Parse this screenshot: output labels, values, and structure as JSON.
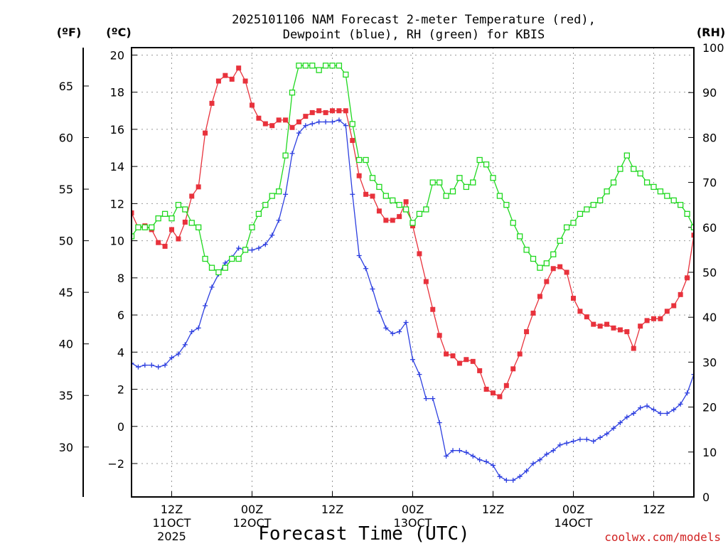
{
  "chart_data": {
    "type": "line",
    "title_line1": "2025101106 NAM Forecast 2-meter Temperature (red),",
    "title_line2": "Dewpoint (blue), RH (green) for KBIS",
    "units": {
      "f": "(ºF)",
      "c": "(ºC)",
      "rh": "(RH)"
    },
    "xlabel": "Forecast Time (UTC)",
    "credit": "coolwx.com/models",
    "x_range_hours": [
      0,
      84
    ],
    "x_ticks": [
      {
        "hour": 6,
        "lines": [
          "12Z",
          "11OCT",
          "2025"
        ]
      },
      {
        "hour": 18,
        "lines": [
          "00Z",
          "12OCT"
        ]
      },
      {
        "hour": 30,
        "lines": [
          "12Z"
        ]
      },
      {
        "hour": 42,
        "lines": [
          "00Z",
          "13OCT"
        ]
      },
      {
        "hour": 54,
        "lines": [
          "12Z"
        ]
      },
      {
        "hour": 66,
        "lines": [
          "00Z",
          "14OCT"
        ]
      },
      {
        "hour": 78,
        "lines": [
          "12Z"
        ]
      }
    ],
    "y_celsius": {
      "min": -3.8,
      "max": 20.4,
      "ticks": [
        -2,
        0,
        2,
        4,
        6,
        8,
        10,
        12,
        14,
        16,
        18,
        20
      ]
    },
    "y_fahrenheit_ticks": [
      30,
      35,
      40,
      45,
      50,
      55,
      60,
      65
    ],
    "y_rh": {
      "min": 0,
      "max": 100,
      "ticks": [
        0,
        10,
        20,
        30,
        40,
        50,
        60,
        70,
        80,
        90,
        100
      ]
    },
    "grid": true,
    "series": [
      {
        "name": "Temperature (red)",
        "axis": "celsius",
        "color": "#e8323c",
        "marker": "filled-square",
        "x": [
          0,
          1,
          2,
          3,
          4,
          5,
          6,
          7,
          8,
          9,
          10,
          11,
          12,
          13,
          14,
          15,
          16,
          17,
          18,
          19,
          20,
          21,
          22,
          23,
          24,
          25,
          26,
          27,
          28,
          29,
          30,
          31,
          32,
          33,
          34,
          35,
          36,
          37,
          38,
          39,
          40,
          41,
          42,
          43,
          44,
          45,
          46,
          47,
          48,
          49,
          50,
          51,
          52,
          53,
          54,
          55,
          56,
          57,
          58,
          59,
          60,
          61,
          62,
          63,
          64,
          65,
          66,
          67,
          68,
          69,
          70,
          71,
          72,
          73,
          74,
          75,
          76,
          77,
          78,
          79,
          80,
          81,
          82,
          83,
          84
        ],
        "values": [
          11.5,
          10.7,
          10.8,
          10.6,
          9.9,
          9.7,
          10.6,
          10.1,
          11.0,
          12.4,
          12.9,
          15.8,
          17.4,
          18.6,
          18.9,
          18.7,
          19.3,
          18.6,
          17.3,
          16.6,
          16.3,
          16.2,
          16.5,
          16.5,
          16.1,
          16.4,
          16.7,
          16.9,
          17.0,
          16.9,
          17.0,
          17.0,
          17.0,
          15.4,
          13.5,
          12.5,
          12.4,
          11.6,
          11.1,
          11.1,
          11.3,
          12.1,
          10.8,
          9.3,
          7.8,
          6.3,
          4.9,
          3.9,
          3.8,
          3.4,
          3.6,
          3.5,
          3.0,
          2.0,
          1.8,
          1.6,
          2.2,
          3.1,
          3.9,
          5.1,
          6.1,
          7.0,
          7.8,
          8.5,
          8.6,
          8.3,
          6.9,
          6.2,
          5.9,
          5.5,
          5.4,
          5.5,
          5.3,
          5.2,
          5.1,
          4.2,
          5.4,
          5.7,
          5.8,
          5.8,
          6.2,
          6.5,
          7.1,
          8.0,
          10.3
        ]
      },
      {
        "name": "Dewpoint (blue)",
        "axis": "celsius",
        "color": "#2d3fe0",
        "marker": "plus",
        "x": [
          0,
          1,
          2,
          3,
          4,
          5,
          6,
          7,
          8,
          9,
          10,
          11,
          12,
          13,
          14,
          15,
          16,
          17,
          18,
          19,
          20,
          21,
          22,
          23,
          24,
          25,
          26,
          27,
          28,
          29,
          30,
          31,
          32,
          33,
          34,
          35,
          36,
          37,
          38,
          39,
          40,
          41,
          42,
          43,
          44,
          45,
          46,
          47,
          48,
          49,
          50,
          51,
          52,
          53,
          54,
          55,
          56,
          57,
          58,
          59,
          60,
          61,
          62,
          63,
          64,
          65,
          66,
          67,
          68,
          69,
          70,
          71,
          72,
          73,
          74,
          75,
          76,
          77,
          78,
          79,
          80,
          81,
          82,
          83,
          84
        ],
        "values": [
          3.4,
          3.2,
          3.3,
          3.3,
          3.2,
          3.3,
          3.7,
          3.9,
          4.4,
          5.1,
          5.3,
          6.5,
          7.5,
          8.2,
          8.8,
          9.1,
          9.6,
          9.5,
          9.5,
          9.6,
          9.8,
          10.3,
          11.1,
          12.5,
          14.7,
          15.8,
          16.2,
          16.3,
          16.4,
          16.4,
          16.4,
          16.5,
          16.2,
          12.5,
          9.2,
          8.5,
          7.4,
          6.2,
          5.3,
          5.0,
          5.1,
          5.6,
          3.6,
          2.8,
          1.5,
          1.5,
          0.2,
          -1.6,
          -1.3,
          -1.3,
          -1.4,
          -1.6,
          -1.8,
          -1.9,
          -2.1,
          -2.7,
          -2.9,
          -2.9,
          -2.7,
          -2.4,
          -2.0,
          -1.8,
          -1.5,
          -1.3,
          -1.0,
          -0.9,
          -0.8,
          -0.7,
          -0.7,
          -0.8,
          -0.6,
          -0.4,
          -0.1,
          0.2,
          0.5,
          0.7,
          1.0,
          1.1,
          0.9,
          0.7,
          0.7,
          0.9,
          1.2,
          1.8,
          2.8
        ]
      },
      {
        "name": "RH (green)",
        "axis": "rh",
        "color": "#1fd81f",
        "marker": "open-square",
        "x": [
          0,
          1,
          2,
          3,
          4,
          5,
          6,
          7,
          8,
          9,
          10,
          11,
          12,
          13,
          14,
          15,
          16,
          17,
          18,
          19,
          20,
          21,
          22,
          23,
          24,
          25,
          26,
          27,
          28,
          29,
          30,
          31,
          32,
          33,
          34,
          35,
          36,
          37,
          38,
          39,
          40,
          41,
          42,
          43,
          44,
          45,
          46,
          47,
          48,
          49,
          50,
          51,
          52,
          53,
          54,
          55,
          56,
          57,
          58,
          59,
          60,
          61,
          62,
          63,
          64,
          65,
          66,
          67,
          68,
          69,
          70,
          71,
          72,
          73,
          74,
          75,
          76,
          77,
          78,
          79,
          80,
          81,
          82,
          83,
          84
        ],
        "values": [
          58,
          60,
          60,
          60,
          62,
          63,
          62,
          65,
          64,
          61,
          60,
          53,
          51,
          50,
          51,
          53,
          53,
          55,
          60,
          63,
          65,
          67,
          68,
          76,
          90,
          96,
          96,
          96,
          95,
          96,
          96,
          96,
          94,
          83,
          75,
          75,
          71,
          69,
          67,
          66,
          65,
          64,
          61,
          63,
          64,
          70,
          70,
          67,
          68,
          71,
          69,
          70,
          75,
          74,
          71,
          67,
          65,
          61,
          58,
          55,
          53,
          51,
          52,
          54,
          57,
          60,
          61,
          63,
          64,
          65,
          66,
          68,
          70,
          73,
          76,
          73,
          72,
          70,
          69,
          68,
          67,
          66,
          65,
          63,
          60
        ]
      }
    ]
  }
}
